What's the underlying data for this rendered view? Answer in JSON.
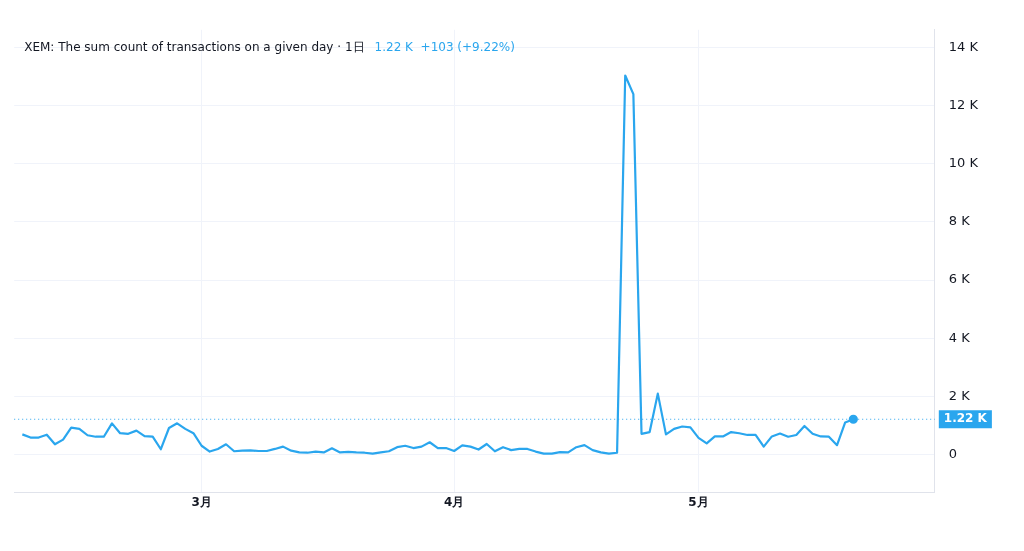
{
  "chart_data": {
    "type": "line",
    "title": "XEM: The sum count of transactions on a given day · 1日",
    "subtitle": "1.22 K  +103 (+9.22%)",
    "x": [
      "--02-07",
      "--02-08",
      "--02-09",
      "--02-10",
      "--02-11",
      "--02-12",
      "--02-13",
      "--02-14",
      "--02-15",
      "--02-16",
      "--02-17",
      "--02-18",
      "--02-19",
      "--02-20",
      "--02-21",
      "--02-22",
      "--02-23",
      "--02-24",
      "--02-25",
      "--02-26",
      "--02-27",
      "--02-28",
      "--03-01",
      "--03-02",
      "--03-03",
      "--03-04",
      "--03-05",
      "--03-06",
      "--03-07",
      "--03-08",
      "--03-09",
      "--03-10",
      "--03-11",
      "--03-12",
      "--03-13",
      "--03-14",
      "--03-15",
      "--03-16",
      "--03-17",
      "--03-18",
      "--03-19",
      "--03-20",
      "--03-21",
      "--03-22",
      "--03-23",
      "--03-24",
      "--03-25",
      "--03-26",
      "--03-27",
      "--03-28",
      "--03-29",
      "--03-30",
      "--03-31",
      "--04-01",
      "--04-02",
      "--04-03",
      "--04-04",
      "--04-05",
      "--04-06",
      "--04-07",
      "--04-08",
      "--04-09",
      "--04-10",
      "--04-11",
      "--04-12",
      "--04-13",
      "--04-14",
      "--04-15",
      "--04-16",
      "--04-17",
      "--04-18",
      "--04-19",
      "--04-20",
      "--04-21",
      "--04-22",
      "--04-23",
      "--04-24",
      "--04-25",
      "--04-26",
      "--04-27",
      "--04-28",
      "--04-29",
      "--04-30",
      "--05-01",
      "--05-02",
      "--05-03",
      "--05-04",
      "--05-05",
      "--05-06",
      "--05-07",
      "--05-08",
      "--05-09",
      "--05-10",
      "--05-11",
      "--05-12",
      "--05-13",
      "--05-14",
      "--05-15",
      "--05-16",
      "--05-17",
      "--05-18",
      "--05-19",
      "--05-20"
    ],
    "series": [
      {
        "color": "#2aa6ee",
        "values": [
          0.7,
          0.59,
          0.59,
          0.69,
          0.36,
          0.52,
          0.93,
          0.89,
          0.67,
          0.62,
          0.62,
          1.08,
          0.74,
          0.72,
          0.83,
          0.64,
          0.62,
          0.19,
          0.92,
          1.08,
          0.89,
          0.74,
          0.31,
          0.11,
          0.2,
          0.36,
          0.12,
          0.14,
          0.15,
          0.13,
          0.13,
          0.2,
          0.28,
          0.14,
          0.08,
          0.07,
          0.11,
          0.08,
          0.22,
          0.08,
          0.1,
          0.08,
          0.07,
          0.04,
          0.08,
          0.12,
          0.26,
          0.31,
          0.23,
          0.28,
          0.43,
          0.23,
          0.23,
          0.13,
          0.32,
          0.28,
          0.18,
          0.37,
          0.12,
          0.26,
          0.16,
          0.2,
          0.2,
          0.11,
          0.04,
          0.04,
          0.09,
          0.08,
          0.26,
          0.33,
          0.16,
          0.08,
          0.04,
          0.07,
          13.03,
          12.39,
          0.72,
          0.78,
          2.1,
          0.7,
          0.89,
          0.97,
          0.94,
          0.58,
          0.39,
          0.63,
          0.63,
          0.78,
          0.74,
          0.68,
          0.68,
          0.28,
          0.63,
          0.73,
          0.62,
          0.68,
          0.99,
          0.72,
          0.63,
          0.62,
          0.33,
          1.11,
          1.22
        ]
      }
    ],
    "xlim": [
      "--02-06",
      "--05-30"
    ],
    "xticks": [
      {
        "value": "--03-01",
        "label": "3月"
      },
      {
        "value": "--04-01",
        "label": "4月"
      },
      {
        "value": "--05-01",
        "label": "5月"
      }
    ],
    "ylim": [
      -1.3,
      14.6
    ],
    "yticks": [
      {
        "value": 0,
        "label": "0"
      },
      {
        "value": 2,
        "label": "2 K"
      },
      {
        "value": 4,
        "label": "4 K"
      },
      {
        "value": 6,
        "label": "6 K"
      },
      {
        "value": 8,
        "label": "8 K"
      },
      {
        "value": 10,
        "label": "10 K"
      },
      {
        "value": 12,
        "label": "12 K"
      },
      {
        "value": 14,
        "label": "14 K"
      }
    ],
    "ref_lines": [
      {
        "axis": "y",
        "value": 1.22,
        "label": "1.22 K",
        "color": "#2aa6ee",
        "line_style": "dotted"
      }
    ],
    "grid": true,
    "legend": false
  }
}
